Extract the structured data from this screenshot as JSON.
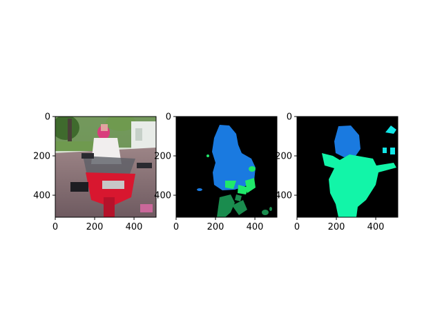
{
  "figure": {
    "background": "#ffffff",
    "panel_count": 3
  },
  "chart_data": [
    {
      "type": "image",
      "content": "photo of a person with pink hair on a red motorcycle on a brick driveway, trees and a white house in the background",
      "xlim": [
        0,
        512
      ],
      "ylim": [
        512,
        0
      ],
      "xticks": [
        0,
        200,
        400
      ],
      "yticks": [
        0,
        200,
        400
      ],
      "grid": false,
      "colors": {
        "sky": "#c9d6c0",
        "trees": "#4f7a3a",
        "ground": "#8a6f73",
        "motorcycle": "#d8172f",
        "windshield": "#5d5f66",
        "person_shirt": "#f1eeee",
        "person_hair": "#d83d7c"
      }
    },
    {
      "type": "image",
      "content": "predicted segmentation mask",
      "xlim": [
        0,
        512
      ],
      "ylim": [
        512,
        0
      ],
      "xticks": [
        0,
        200,
        400
      ],
      "yticks": [
        0,
        200,
        400
      ],
      "grid": false,
      "colors": {
        "background": "#000000",
        "person": "#1a7ae0",
        "motorcycle_light": "#20e86a",
        "motorcycle_dark": "#1a8c4e"
      }
    },
    {
      "type": "image",
      "content": "ground-truth segmentation mask",
      "xlim": [
        0,
        512
      ],
      "ylim": [
        512,
        0
      ],
      "xticks": [
        0,
        200,
        400
      ],
      "yticks": [
        0,
        200,
        400
      ],
      "grid": false,
      "colors": {
        "background": "#000000",
        "person": "#1a7ae0",
        "motorcycle": "#12f5a8",
        "other": "#12e6e6"
      }
    }
  ]
}
